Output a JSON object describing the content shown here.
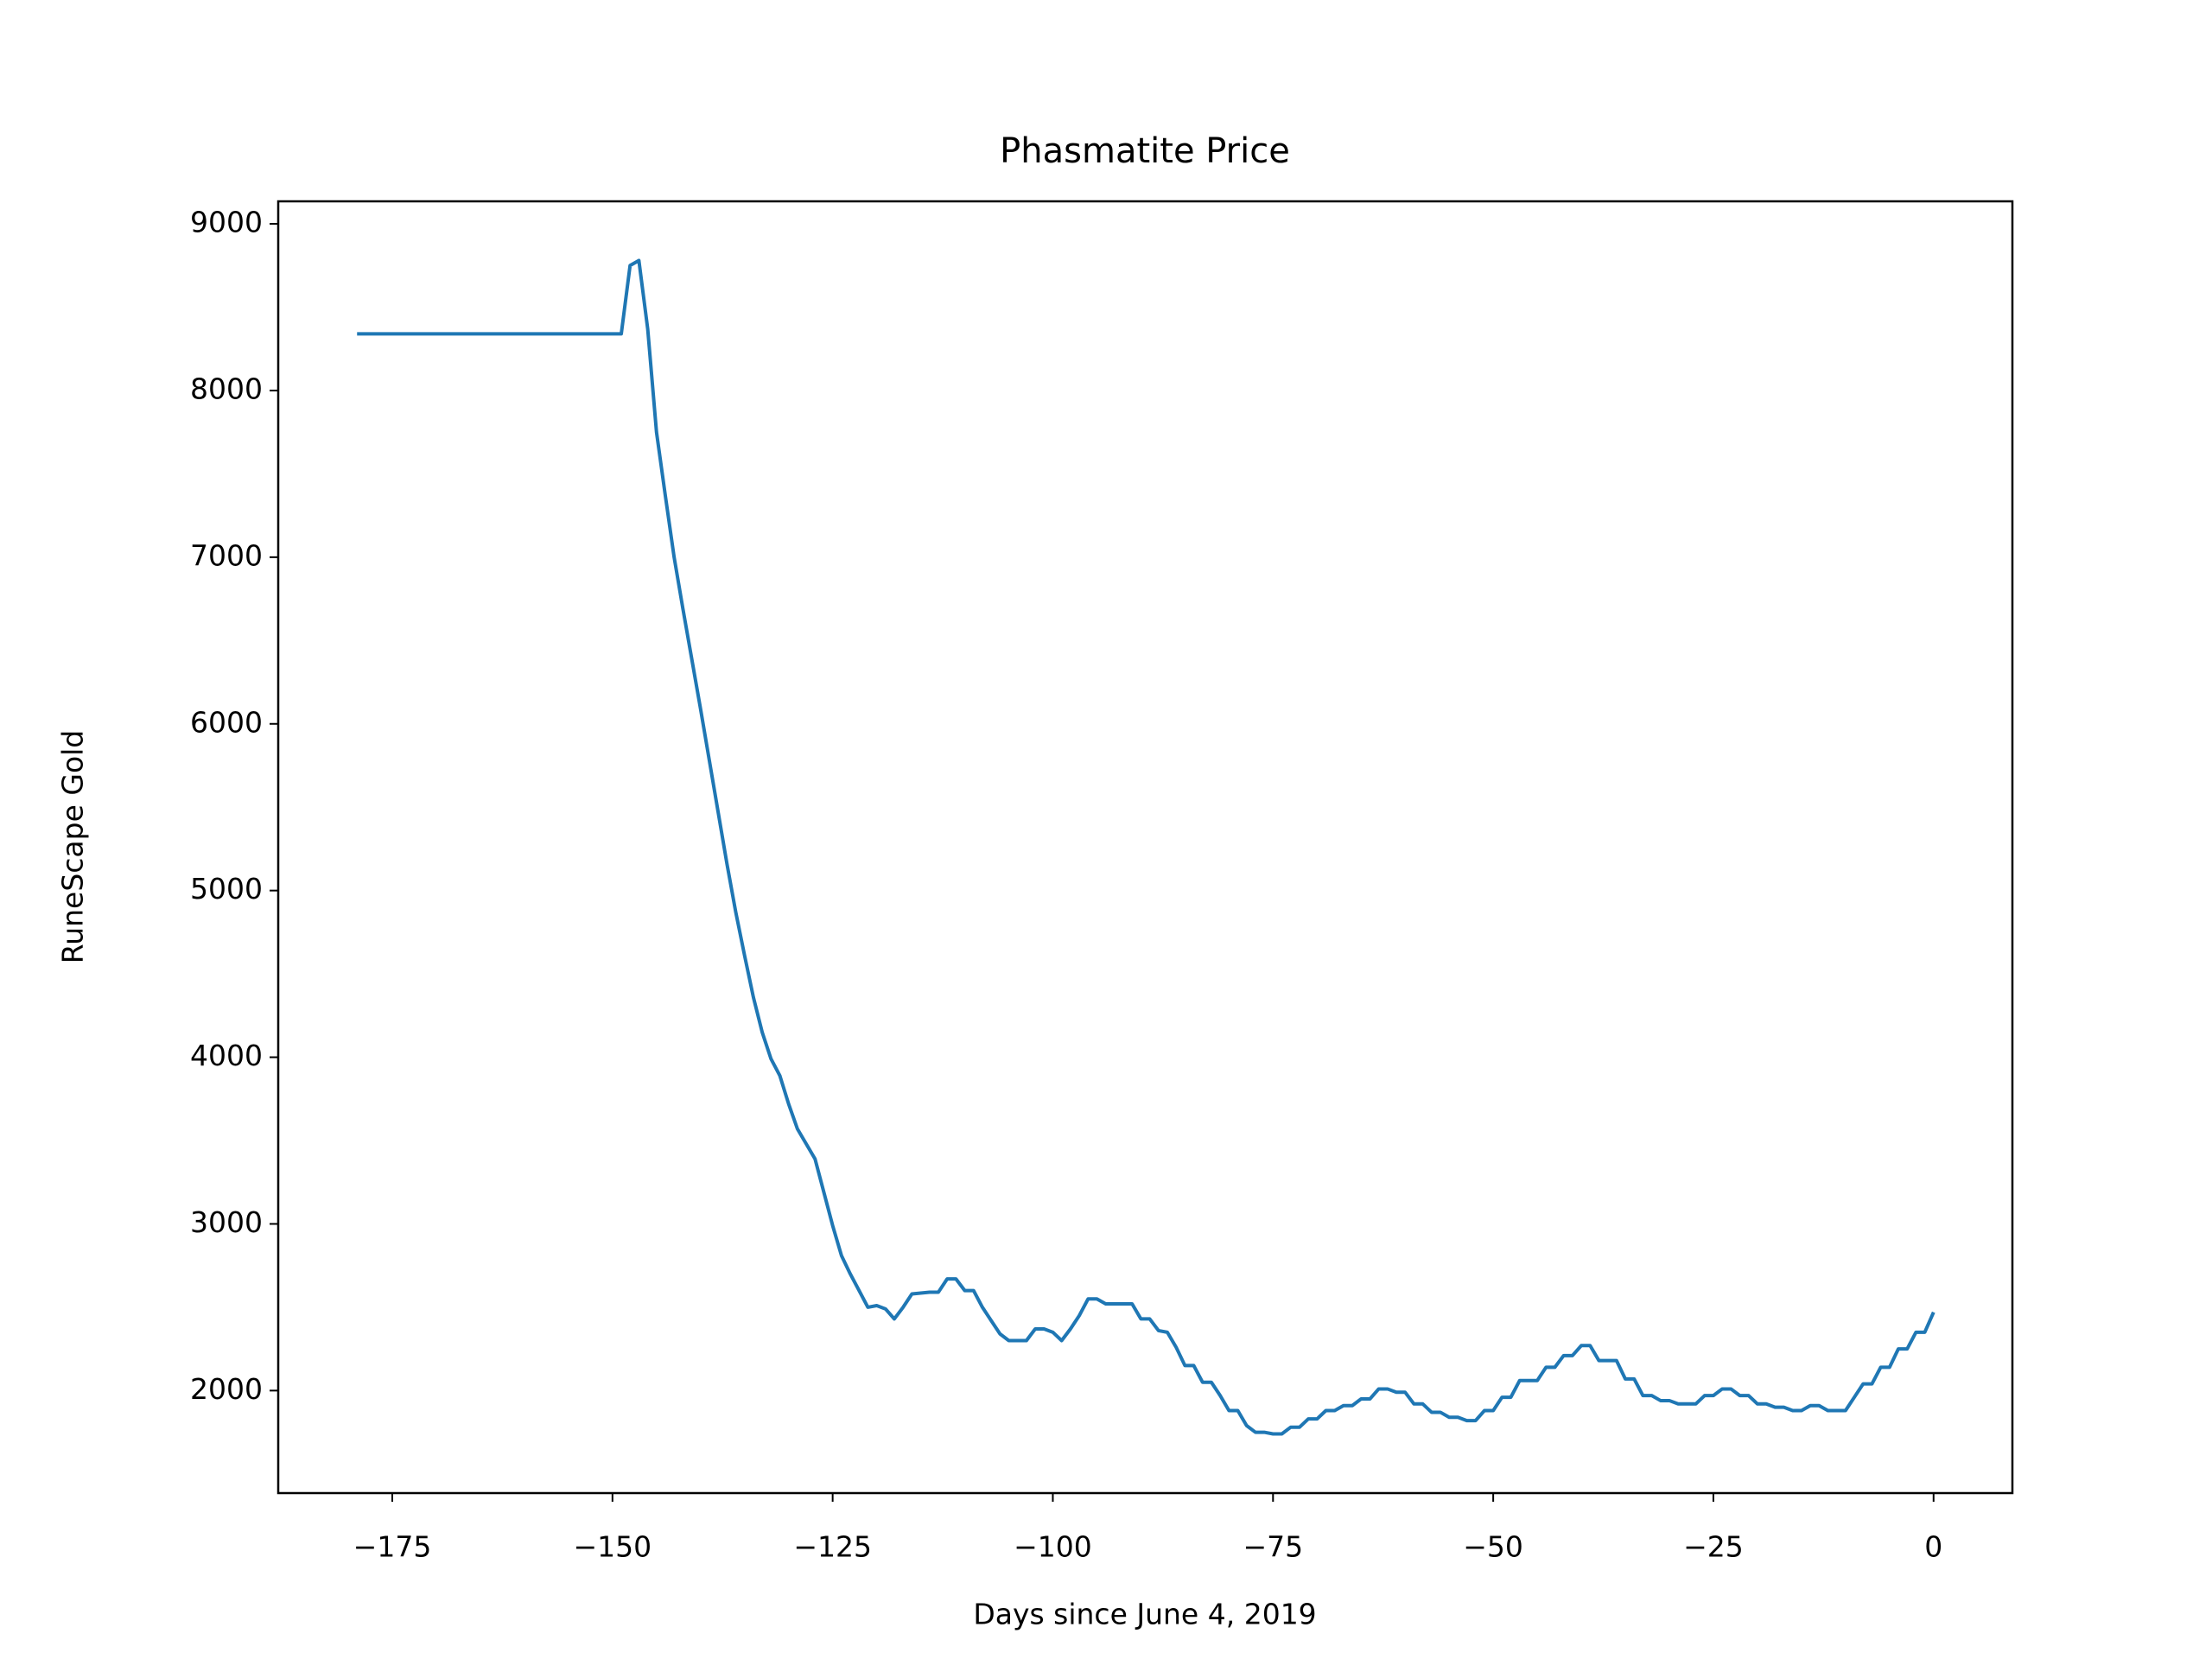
{
  "chart_data": {
    "type": "line",
    "title": "Phasmatite Price",
    "xlabel": "Days since June 4, 2019",
    "ylabel": "RuneScape Gold",
    "x": [
      -179,
      -178,
      -177,
      -176,
      -175,
      -174,
      -173,
      -172,
      -171,
      -170,
      -169,
      -168,
      -167,
      -166,
      -165,
      -164,
      -163,
      -162,
      -161,
      -160,
      -159,
      -158,
      -157,
      -156,
      -155,
      -154,
      -153,
      -152,
      -151,
      -150,
      -149,
      -148,
      -147,
      -146,
      -145,
      -144,
      -143,
      -142,
      -141,
      -140,
      -139,
      -138,
      -137,
      -136,
      -135,
      -134,
      -133,
      -132,
      -131,
      -130,
      -129,
      -128,
      -127,
      -126,
      -125,
      -124,
      -123,
      -122,
      -121,
      -120,
      -119,
      -118,
      -117,
      -116,
      -115,
      -114,
      -113,
      -112,
      -111,
      -110,
      -109,
      -108,
      -107,
      -106,
      -105,
      -104,
      -103,
      -102,
      -101,
      -100,
      -99,
      -98,
      -97,
      -96,
      -95,
      -94,
      -93,
      -92,
      -91,
      -90,
      -89,
      -88,
      -87,
      -86,
      -85,
      -84,
      -83,
      -82,
      -81,
      -80,
      -79,
      -78,
      -77,
      -76,
      -75,
      -74,
      -73,
      -72,
      -71,
      -70,
      -69,
      -68,
      -67,
      -66,
      -65,
      -64,
      -63,
      -62,
      -61,
      -60,
      -59,
      -58,
      -57,
      -56,
      -55,
      -54,
      -53,
      -52,
      -51,
      -50,
      -49,
      -48,
      -47,
      -46,
      -45,
      -44,
      -43,
      -42,
      -41,
      -40,
      -39,
      -38,
      -37,
      -36,
      -35,
      -34,
      -33,
      -32,
      -31,
      -30,
      -29,
      -28,
      -27,
      -26,
      -25,
      -24,
      -23,
      -22,
      -21,
      -20,
      -19,
      -18,
      -17,
      -16,
      -15,
      -14,
      -13,
      -12,
      -11,
      -10,
      -9,
      -8,
      -7,
      -6,
      -5,
      -4,
      -3,
      -2,
      -1,
      0
    ],
    "series": [
      {
        "name": "Phasmatite",
        "color": "#1f77b4",
        "values": [
          8340,
          8340,
          8340,
          8340,
          8340,
          8340,
          8340,
          8340,
          8340,
          8340,
          8340,
          8340,
          8340,
          8340,
          8340,
          8340,
          8340,
          8340,
          8340,
          8340,
          8340,
          8340,
          8340,
          8340,
          8340,
          8340,
          8340,
          8340,
          8340,
          8340,
          8340,
          8750,
          8780,
          8370,
          7750,
          7370,
          7000,
          6690,
          6390,
          6090,
          5780,
          5470,
          5160,
          4870,
          4610,
          4360,
          4150,
          3990,
          3890,
          3720,
          3570,
          3480,
          3390,
          3190,
          2990,
          2810,
          2700,
          2600,
          2500,
          2510,
          2490,
          2430,
          2500,
          2580,
          2585,
          2590,
          2590,
          2670,
          2670,
          2600,
          2600,
          2500,
          2420,
          2340,
          2300,
          2300,
          2300,
          2370,
          2370,
          2350,
          2300,
          2370,
          2450,
          2550,
          2550,
          2520,
          2520,
          2520,
          2520,
          2430,
          2430,
          2360,
          2350,
          2260,
          2150,
          2150,
          2050,
          2050,
          1970,
          1880,
          1880,
          1790,
          1750,
          1750,
          1740,
          1740,
          1780,
          1780,
          1830,
          1830,
          1880,
          1880,
          1910,
          1910,
          1950,
          1950,
          2010,
          2010,
          1990,
          1990,
          1920,
          1920,
          1870,
          1870,
          1840,
          1840,
          1820,
          1820,
          1880,
          1880,
          1960,
          1960,
          2060,
          2060,
          2060,
          2140,
          2140,
          2210,
          2210,
          2270,
          2270,
          2180,
          2180,
          2180,
          2070,
          2070,
          1970,
          1970,
          1940,
          1940,
          1920,
          1920,
          1920,
          1970,
          1970,
          2010,
          2010,
          1970,
          1970,
          1920,
          1920,
          1900,
          1900,
          1880,
          1880,
          1910,
          1910,
          1880,
          1880,
          1880,
          1960,
          2040,
          2040,
          2140,
          2140,
          2250,
          2250,
          2350,
          2350,
          2470
        ]
      }
    ],
    "xlim": [
      -187.95,
      8.95
    ],
    "ylim": [
      1385,
      9135
    ],
    "xticks": [
      {
        "value": -175,
        "label": "−175"
      },
      {
        "value": -150,
        "label": "−150"
      },
      {
        "value": -125,
        "label": "−125"
      },
      {
        "value": -100,
        "label": "−100"
      },
      {
        "value": -75,
        "label": "−75"
      },
      {
        "value": -50,
        "label": "−50"
      },
      {
        "value": -25,
        "label": "−25"
      },
      0
    ],
    "yticks": [
      2000,
      3000,
      4000,
      5000,
      6000,
      7000,
      8000,
      9000
    ],
    "grid": false
  }
}
